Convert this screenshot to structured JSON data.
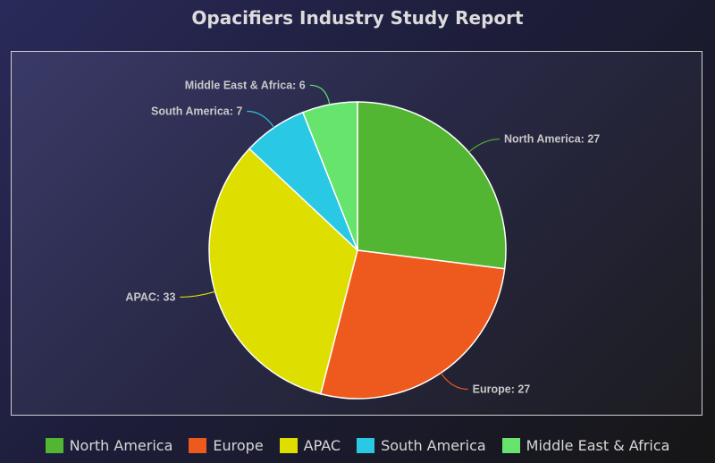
{
  "chart_data": {
    "type": "pie",
    "title": "Opacifiers Industry Study Report",
    "categories": [
      "North America",
      "Europe",
      "APAC",
      "South America",
      "Middle East & Africa"
    ],
    "values": [
      27,
      27,
      33,
      7,
      6
    ],
    "colors": [
      "#52b632",
      "#ee5a1e",
      "#dede00",
      "#29c8e4",
      "#66e46e"
    ],
    "data_labels": [
      "North America: 27",
      "Europe: 27",
      "APAC: 33",
      "South America: 7",
      "Middle East & Africa: 6"
    ],
    "legend_position": "bottom"
  }
}
